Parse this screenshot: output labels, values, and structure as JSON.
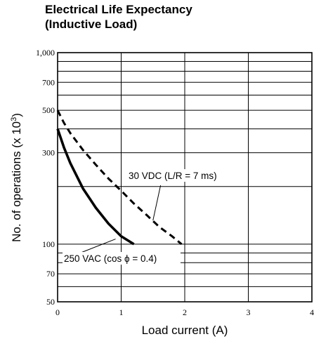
{
  "chart_data": {
    "type": "line",
    "title": "Electrical Life Expectancy",
    "subtitle": "(Inductive Load)",
    "xlabel": "Load current (A)",
    "ylabel_main": "No. of operations (x 10",
    "ylabel_exp": "3",
    "ylabel_close": ")",
    "xlim": [
      0,
      4
    ],
    "ylim": [
      50,
      1000
    ],
    "yscale": "log",
    "xticks": [
      "0",
      "1",
      "2",
      "3",
      "4"
    ],
    "yticks": [
      {
        "value": 50,
        "label": "50"
      },
      {
        "value": 70,
        "label": "70"
      },
      {
        "value": 100,
        "label": "100"
      },
      {
        "value": 300,
        "label": "300"
      },
      {
        "value": 500,
        "label": "500"
      },
      {
        "value": 700,
        "label": "700"
      },
      {
        "value": 1000,
        "label": "1,000"
      }
    ],
    "hgrid": [
      50,
      60,
      70,
      80,
      90,
      100,
      200,
      300,
      400,
      500,
      600,
      700,
      800,
      900,
      1000
    ],
    "vgrid": [
      0,
      1,
      2,
      3,
      4
    ],
    "series": [
      {
        "name": "250 VAC (cos ϕ = 0.4)",
        "style": "solid",
        "points": [
          [
            0,
            400
          ],
          [
            0.1,
            320
          ],
          [
            0.2,
            265
          ],
          [
            0.4,
            195
          ],
          [
            0.6,
            155
          ],
          [
            0.8,
            128
          ],
          [
            1.0,
            110
          ],
          [
            1.2,
            100
          ]
        ]
      },
      {
        "name": "30 VDC (L/R = 7 ms)",
        "style": "dashed",
        "points": [
          [
            0,
            500
          ],
          [
            0.1,
            430
          ],
          [
            0.2,
            380
          ],
          [
            0.4,
            310
          ],
          [
            0.6,
            260
          ],
          [
            0.8,
            220
          ],
          [
            1.0,
            190
          ],
          [
            1.2,
            163
          ],
          [
            1.4,
            142
          ],
          [
            1.6,
            123
          ],
          [
            1.8,
            110
          ],
          [
            1.95,
            100
          ]
        ]
      }
    ],
    "annotations": {
      "dc_label": "30 VDC (L/R = 7 ms)",
      "ac_label": "250 VAC (cos ϕ = 0.4)"
    },
    "grid": true
  }
}
